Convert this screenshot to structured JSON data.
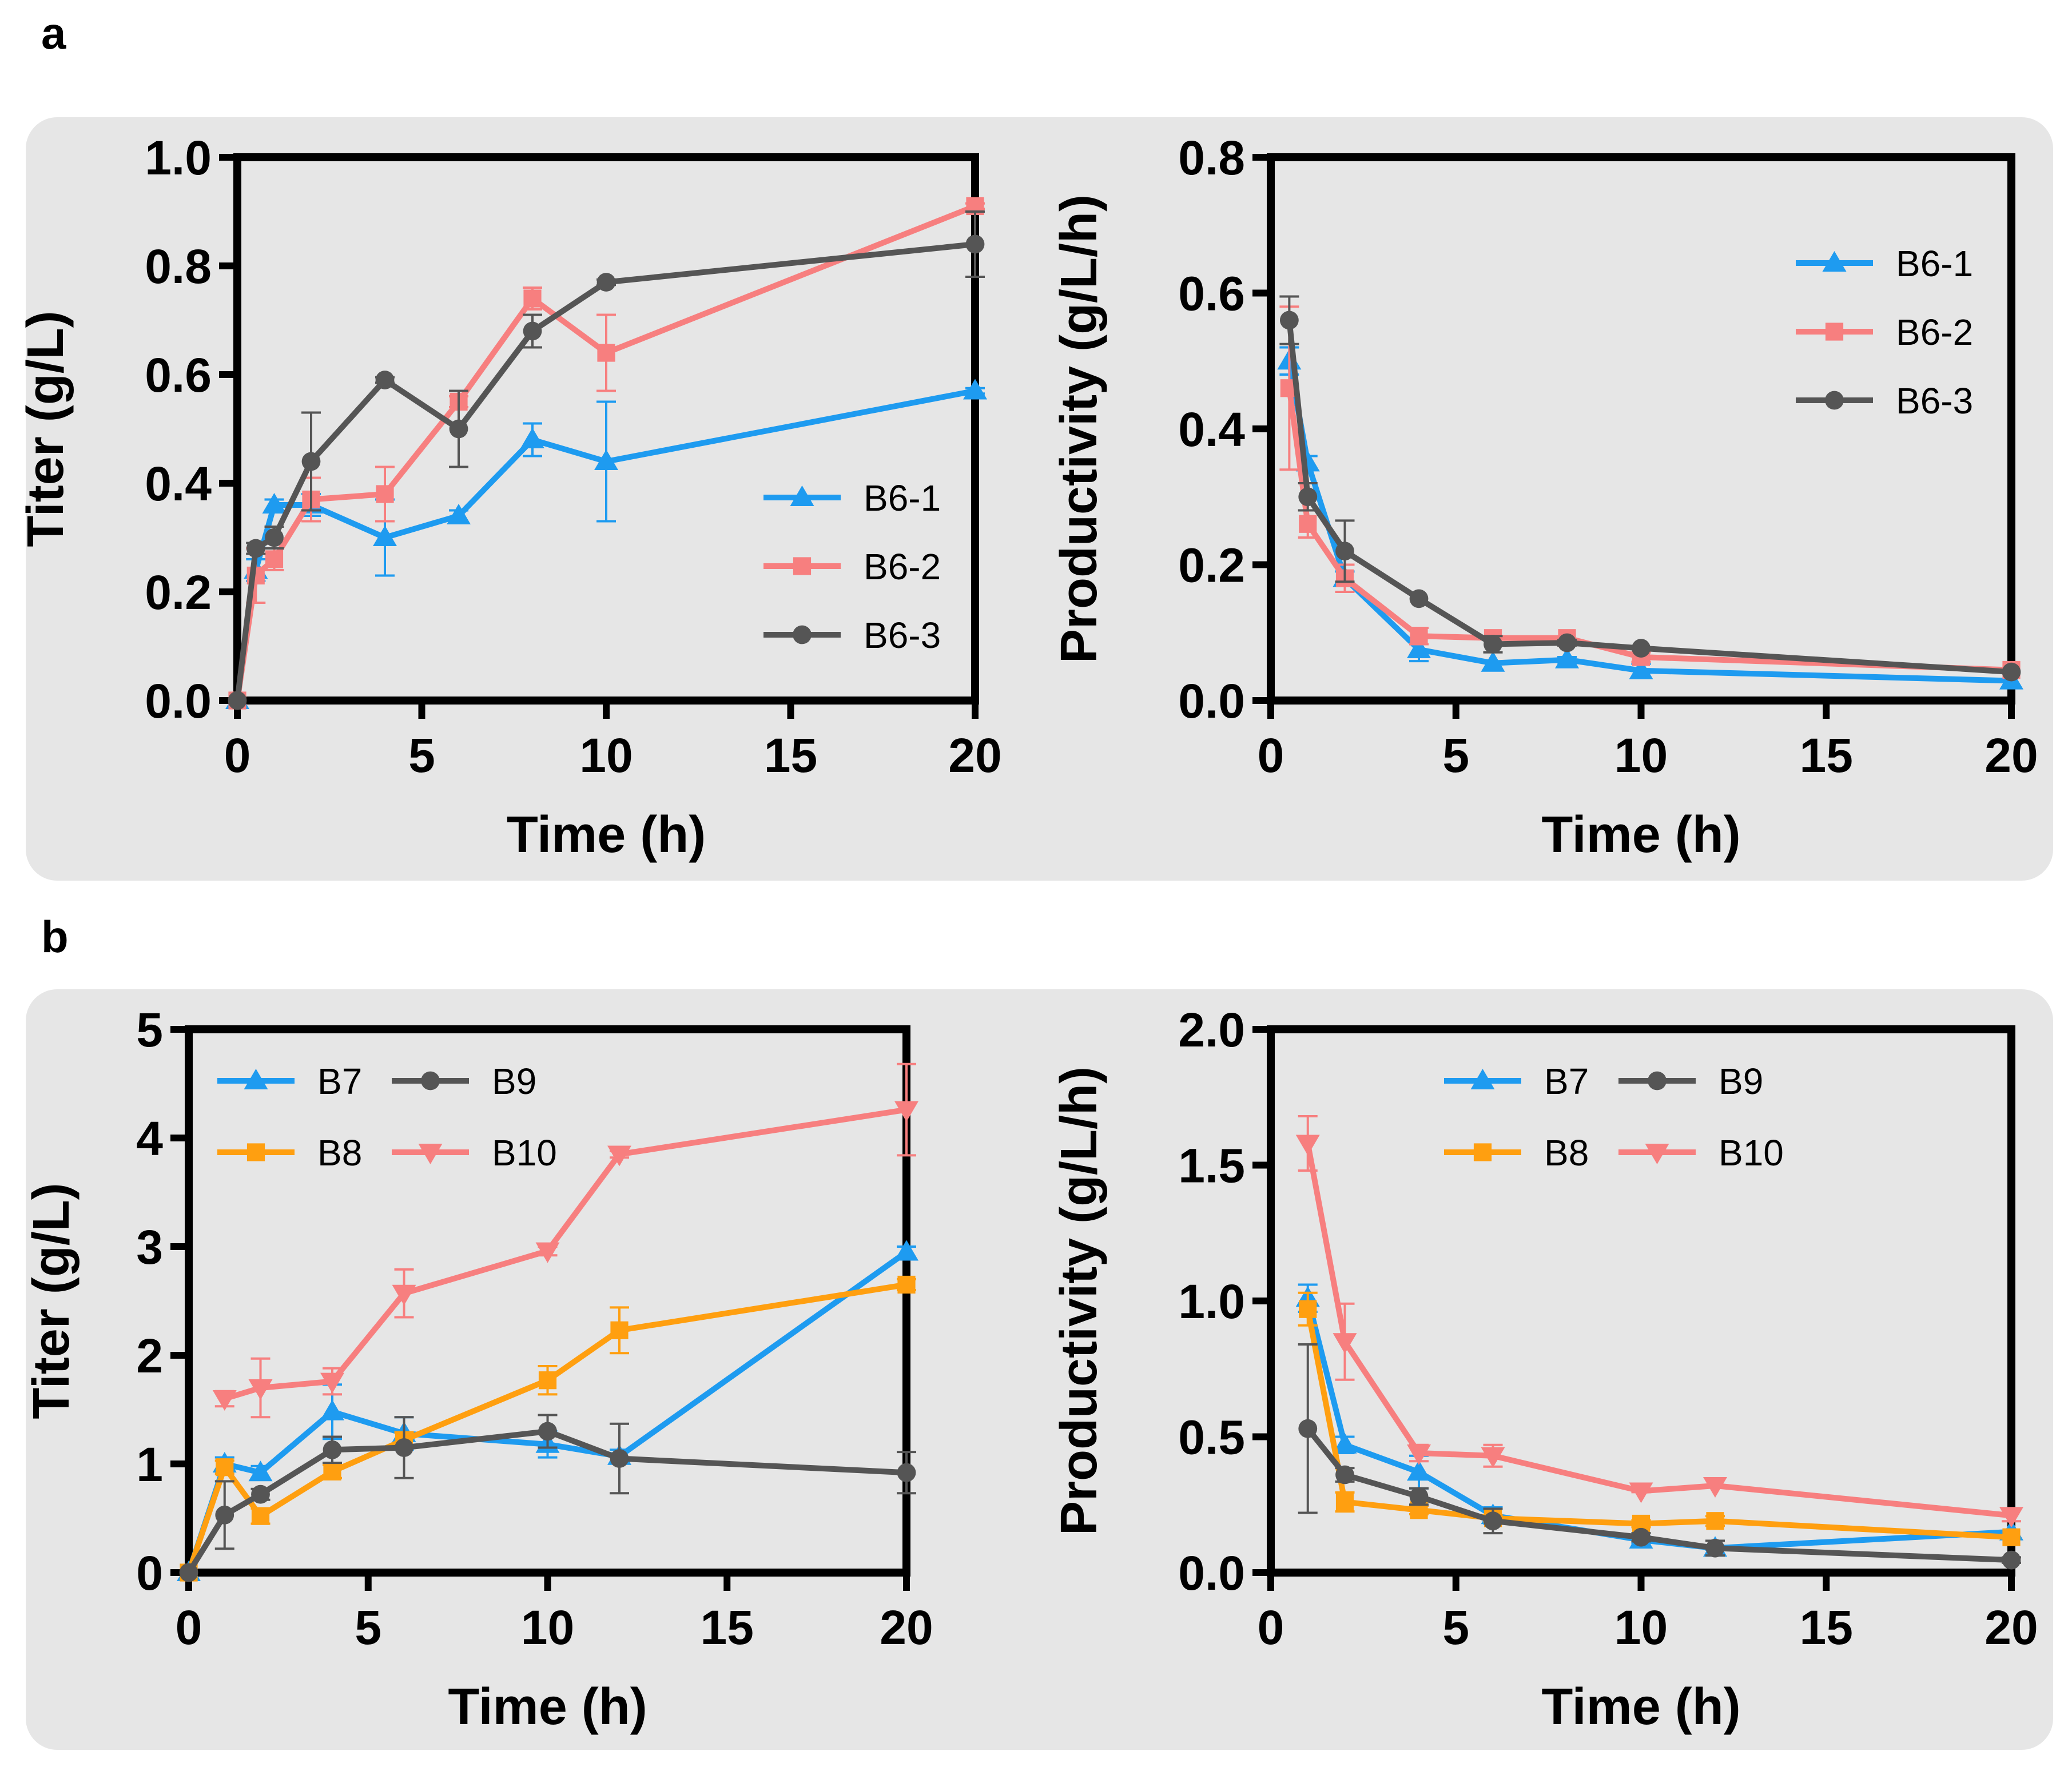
{
  "panels": [
    {
      "label": "a"
    },
    {
      "label": "b"
    }
  ],
  "colors": {
    "background": "#e6e6e6",
    "blue": "#1e9bf0",
    "red": "#f77f7f",
    "gray": "#555555",
    "orange": "#ff9f10",
    "black": "#000000"
  },
  "chart_data": [
    {
      "type": "line",
      "panel": "a",
      "xlabel": "Time (h)",
      "ylabel": "Titer (g/L)",
      "xlim": [
        0,
        20
      ],
      "ylim": [
        0,
        1.0
      ],
      "xticks": [
        "0",
        "5",
        "10",
        "15",
        "20"
      ],
      "yticks": [
        "0.0",
        "0.2",
        "0.4",
        "0.6",
        "0.8",
        "1.0"
      ],
      "legend_position": "lower-right",
      "series": [
        {
          "name": "B6-1",
          "color": "#1e9bf0",
          "marker": "triangle-up",
          "x": [
            0,
            0.5,
            1,
            2,
            4,
            6,
            8,
            10,
            20
          ],
          "y": [
            0,
            0.24,
            0.36,
            0.36,
            0.3,
            0.34,
            0.48,
            0.44,
            0.57
          ],
          "err": [
            0,
            0.02,
            0.01,
            0.02,
            0.07,
            0.01,
            0.03,
            0.11,
            0.005
          ]
        },
        {
          "name": "B6-2",
          "color": "#f77f7f",
          "marker": "square",
          "x": [
            0,
            0.5,
            1,
            2,
            4,
            6,
            8,
            10,
            20
          ],
          "y": [
            0,
            0.23,
            0.26,
            0.37,
            0.38,
            0.55,
            0.74,
            0.64,
            0.91
          ],
          "err": [
            0,
            0.05,
            0.02,
            0.04,
            0.05,
            0.01,
            0.02,
            0.07,
            0.005
          ]
        },
        {
          "name": "B6-3",
          "color": "#555555",
          "marker": "circle",
          "x": [
            0,
            0.5,
            1,
            2,
            4,
            6,
            8,
            10,
            20
          ],
          "y": [
            0,
            0.28,
            0.3,
            0.44,
            0.59,
            0.5,
            0.68,
            0.77,
            0.84
          ],
          "err": [
            0,
            0.01,
            0.02,
            0.09,
            0.005,
            0.07,
            0.03,
            0.005,
            0.06
          ]
        }
      ]
    },
    {
      "type": "line",
      "panel": "a",
      "xlabel": "Time (h)",
      "ylabel": "Productivity (g/L/h)",
      "xlim": [
        0,
        20
      ],
      "ylim": [
        0,
        0.8
      ],
      "xticks": [
        "0",
        "5",
        "10",
        "15",
        "20"
      ],
      "yticks": [
        "0.0",
        "0.2",
        "0.4",
        "0.6",
        "0.8"
      ],
      "legend_position": "upper-right",
      "series": [
        {
          "name": "B6-1",
          "color": "#1e9bf0",
          "marker": "triangle-up",
          "x": [
            0.5,
            1,
            2,
            4,
            6,
            8,
            10,
            20
          ],
          "y": [
            0.5,
            0.35,
            0.18,
            0.075,
            0.055,
            0.06,
            0.044,
            0.029
          ],
          "err": [
            0.02,
            0.01,
            0.01,
            0.017,
            0.003,
            0.004,
            0.01,
            0.002
          ]
        },
        {
          "name": "B6-2",
          "color": "#f77f7f",
          "marker": "square",
          "x": [
            0.5,
            1,
            2,
            4,
            6,
            8,
            10,
            20
          ],
          "y": [
            0.46,
            0.26,
            0.18,
            0.095,
            0.092,
            0.092,
            0.064,
            0.045
          ],
          "err": [
            0.12,
            0.02,
            0.02,
            0.012,
            0.003,
            0.003,
            0.007,
            0.002
          ]
        },
        {
          "name": "B6-3",
          "color": "#555555",
          "marker": "circle",
          "x": [
            0.5,
            1,
            2,
            4,
            6,
            8,
            10,
            20
          ],
          "y": [
            0.56,
            0.3,
            0.22,
            0.15,
            0.083,
            0.085,
            0.077,
            0.042
          ],
          "err": [
            0.035,
            0.02,
            0.045,
            0.003,
            0.012,
            0.004,
            0.002,
            0.003
          ]
        }
      ]
    },
    {
      "type": "line",
      "panel": "b",
      "xlabel": "Time (h)",
      "ylabel": "Titer (g/L)",
      "xlim": [
        0,
        20
      ],
      "ylim": [
        0,
        5
      ],
      "xticks": [
        "0",
        "5",
        "10",
        "15",
        "20"
      ],
      "yticks": [
        "0",
        "1",
        "2",
        "3",
        "4",
        "5"
      ],
      "legend_position": "upper-left",
      "legend_columns": 2,
      "series": [
        {
          "name": "B7",
          "color": "#1e9bf0",
          "marker": "triangle-up",
          "x": [
            0,
            1,
            2,
            4,
            6,
            10,
            12,
            20
          ],
          "y": [
            0,
            1.0,
            0.92,
            1.48,
            1.28,
            1.18,
            1.07,
            2.95
          ],
          "err": [
            0,
            0.06,
            0.06,
            0.25,
            0.15,
            0.12,
            0.06,
            0.05
          ]
        },
        {
          "name": "B8",
          "color": "#ff9f10",
          "marker": "square",
          "x": [
            0,
            1,
            2,
            4,
            6,
            10,
            12,
            20
          ],
          "y": [
            0,
            0.97,
            0.52,
            0.93,
            1.22,
            1.77,
            2.23,
            2.65
          ],
          "err": [
            0,
            0.06,
            0.07,
            0.06,
            0.07,
            0.13,
            0.21,
            0.05
          ]
        },
        {
          "name": "B9",
          "color": "#555555",
          "marker": "circle",
          "x": [
            0,
            1,
            2,
            4,
            6,
            10,
            12,
            20
          ],
          "y": [
            0,
            0.53,
            0.72,
            1.13,
            1.15,
            1.3,
            1.05,
            0.92
          ],
          "err": [
            0,
            0.31,
            0.05,
            0.12,
            0.28,
            0.15,
            0.32,
            0.19
          ]
        },
        {
          "name": "B10",
          "color": "#f77f7f",
          "marker": "triangle-down",
          "x": [
            1,
            2,
            4,
            6,
            10,
            12,
            20
          ],
          "y": [
            1.6,
            1.7,
            1.76,
            2.57,
            2.96,
            3.85,
            4.26
          ],
          "err": [
            0.07,
            0.27,
            0.12,
            0.22,
            0.04,
            0.03,
            0.42
          ]
        }
      ]
    },
    {
      "type": "line",
      "panel": "b",
      "xlabel": "Time (h)",
      "ylabel": "Productivity (g/L/h)",
      "xlim": [
        0,
        20
      ],
      "ylim": [
        0,
        2.0
      ],
      "xticks": [
        "0",
        "5",
        "10",
        "15",
        "20"
      ],
      "yticks": [
        "0.0",
        "0.5",
        "1.0",
        "1.5",
        "2.0"
      ],
      "legend_position": "upper-center",
      "legend_columns": 2,
      "series": [
        {
          "name": "B7",
          "color": "#1e9bf0",
          "marker": "triangle-up",
          "x": [
            1,
            2,
            4,
            6,
            10,
            12,
            20
          ],
          "y": [
            1.01,
            0.47,
            0.37,
            0.21,
            0.12,
            0.09,
            0.15
          ],
          "err": [
            0.05,
            0.03,
            0.06,
            0.03,
            0.012,
            0.006,
            0.003
          ]
        },
        {
          "name": "B8",
          "color": "#ff9f10",
          "marker": "square",
          "x": [
            1,
            2,
            4,
            6,
            10,
            12,
            20
          ],
          "y": [
            0.97,
            0.26,
            0.23,
            0.2,
            0.18,
            0.19,
            0.13
          ],
          "err": [
            0.06,
            0.035,
            0.015,
            0.012,
            0.013,
            0.018,
            0.003
          ]
        },
        {
          "name": "B9",
          "color": "#555555",
          "marker": "circle",
          "x": [
            1,
            2,
            4,
            6,
            10,
            12,
            20
          ],
          "y": [
            0.53,
            0.36,
            0.28,
            0.19,
            0.13,
            0.09,
            0.046
          ],
          "err": [
            0.31,
            0.025,
            0.03,
            0.045,
            0.015,
            0.027,
            0.01
          ]
        },
        {
          "name": "B10",
          "color": "#f77f7f",
          "marker": "triangle-down",
          "x": [
            1,
            2,
            4,
            6,
            10,
            12,
            20
          ],
          "y": [
            1.58,
            0.85,
            0.44,
            0.43,
            0.3,
            0.32,
            0.21
          ],
          "err": [
            0.1,
            0.14,
            0.03,
            0.04,
            0.004,
            0.003,
            0.021
          ]
        }
      ]
    }
  ]
}
